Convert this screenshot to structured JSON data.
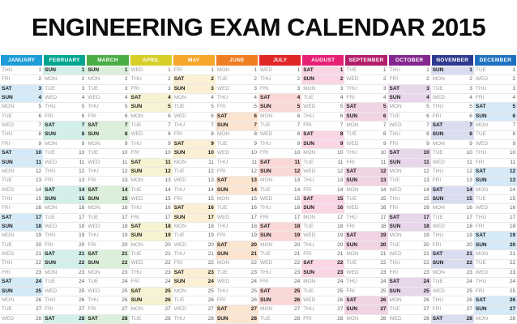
{
  "title": "ENGINEERING EXAM CALENDAR 2015",
  "visible_days": 28,
  "weekend_days": [
    "SAT",
    "SUN"
  ],
  "months": [
    {
      "label": "JANUARY",
      "color": "#1E9CD7",
      "tint": "#D4EBF7",
      "days": [
        "THU",
        "FRI",
        "SAT",
        "SUN",
        "MON",
        "TUE",
        "WED",
        "THU",
        "FRI",
        "SAT",
        "SUN",
        "MON",
        "TUE",
        "WED",
        "THU",
        "FRI",
        "SAT",
        "SUN",
        "MON",
        "TUE",
        "WED",
        "THU",
        "FRI",
        "SAT",
        "SUN",
        "MON",
        "TUE",
        "WED"
      ]
    },
    {
      "label": "FEBRUARY",
      "color": "#00A591",
      "tint": "#D3EFE9",
      "days": [
        "SUN",
        "MON",
        "TUE",
        "WED",
        "THU",
        "FRI",
        "SAT",
        "SUN",
        "MON",
        "TUE",
        "WED",
        "THU",
        "FRI",
        "SAT",
        "SUN",
        "MON",
        "TUE",
        "WED",
        "THU",
        "FRI",
        "SAT",
        "SUN",
        "MON",
        "TUE",
        "WED",
        "THU",
        "FRI",
        "SAT"
      ]
    },
    {
      "label": "MARCH",
      "color": "#4BAE45",
      "tint": "#DCEFDA",
      "days": [
        "SUN",
        "MON",
        "TUE",
        "WED",
        "THU",
        "FRI",
        "SAT",
        "SUN",
        "MON",
        "TUE",
        "WED",
        "THU",
        "FRI",
        "SAT",
        "SUN",
        "MON",
        "TUE",
        "WED",
        "THU",
        "FRI",
        "SAT",
        "SUN",
        "MON",
        "TUE",
        "WED",
        "THU",
        "FRI",
        "SAT"
      ]
    },
    {
      "label": "APRIL",
      "color": "#D7CF28",
      "tint": "#F6F3D2",
      "days": [
        "WED",
        "THU",
        "FRI",
        "SAT",
        "SUN",
        "MON",
        "TUE",
        "WED",
        "THU",
        "FRI",
        "SAT",
        "SUN",
        "MON",
        "TUE",
        "WED",
        "THU",
        "FRI",
        "SAT",
        "SUN",
        "MON",
        "TUE",
        "WED",
        "THU",
        "FRI",
        "SAT",
        "SUN",
        "MON",
        "TUE"
      ]
    },
    {
      "label": "MAY",
      "color": "#F7A72B",
      "tint": "#FCF0D4",
      "days": [
        "FRI",
        "SAT",
        "SUN",
        "MON",
        "TUE",
        "WED",
        "THU",
        "FRI",
        "SAT",
        "SUN",
        "MON",
        "TUE",
        "WED",
        "THU",
        "FRI",
        "SAT",
        "SUN",
        "MON",
        "TUE",
        "WED",
        "THU",
        "FRI",
        "SAT",
        "SUN",
        "MON",
        "TUE",
        "WED",
        "THU"
      ]
    },
    {
      "label": "JUNE",
      "color": "#EF7D22",
      "tint": "#FCE5D0",
      "days": [
        "MON",
        "TUE",
        "WED",
        "THU",
        "FRI",
        "SAT",
        "SUN",
        "MON",
        "TUE",
        "WED",
        "THU",
        "FRI",
        "SAT",
        "SUN",
        "MON",
        "TUE",
        "WED",
        "THU",
        "FRI",
        "SAT",
        "SUN",
        "MON",
        "TUE",
        "WED",
        "THU",
        "FRI",
        "SAT",
        "SUN"
      ]
    },
    {
      "label": "JULY",
      "color": "#DF2728",
      "tint": "#FAD8D7",
      "days": [
        "WED",
        "THU",
        "FRI",
        "SAT",
        "SUN",
        "MON",
        "TUE",
        "WED",
        "THU",
        "FRI",
        "SAT",
        "SUN",
        "MON",
        "TUE",
        "WED",
        "THU",
        "FRI",
        "SAT",
        "SUN",
        "MON",
        "TUE",
        "WED",
        "THU",
        "FRI",
        "SAT",
        "SUN",
        "MON",
        "TUE"
      ]
    },
    {
      "label": "AUGUST",
      "color": "#E72076",
      "tint": "#FAD6E5",
      "days": [
        "SAT",
        "SUN",
        "MON",
        "TUE",
        "WED",
        "THU",
        "FRI",
        "SAT",
        "SUN",
        "MON",
        "TUE",
        "WED",
        "THU",
        "FRI",
        "SAT",
        "SUN",
        "MON",
        "TUE",
        "WED",
        "THU",
        "FRI",
        "SAT",
        "SUN",
        "MON",
        "TUE",
        "WED",
        "THU",
        "FRI"
      ]
    },
    {
      "label": "SEPTEMBER",
      "color": "#B21D69",
      "tint": "#F1D4E3",
      "days": [
        "TUE",
        "WED",
        "THU",
        "FRI",
        "SAT",
        "SUN",
        "MON",
        "TUE",
        "WED",
        "THU",
        "FRI",
        "SAT",
        "SUN",
        "MON",
        "TUE",
        "WED",
        "THU",
        "FRI",
        "SAT",
        "SUN",
        "MON",
        "TUE",
        "WED",
        "THU",
        "FRI",
        "SAT",
        "SUN",
        "MON"
      ]
    },
    {
      "label": "OCTOBER",
      "color": "#85278E",
      "tint": "#E8D7EB",
      "days": [
        "THU",
        "FRI",
        "SAT",
        "SUN",
        "MON",
        "TUE",
        "WED",
        "THU",
        "FRI",
        "SAT",
        "SUN",
        "MON",
        "TUE",
        "WED",
        "THU",
        "FRI",
        "SAT",
        "SUN",
        "MON",
        "TUE",
        "WED",
        "THU",
        "FRI",
        "SAT",
        "SUN",
        "MON",
        "TUE",
        "WED"
      ]
    },
    {
      "label": "NOVEMBER",
      "color": "#2E3A90",
      "tint": "#DADCEF",
      "days": [
        "SUN",
        "MON",
        "TUE",
        "WED",
        "THU",
        "FRI",
        "SAT",
        "SUN",
        "MON",
        "TUE",
        "WED",
        "THU",
        "FRI",
        "SAT",
        "SUN",
        "MON",
        "TUE",
        "WED",
        "THU",
        "FRI",
        "SAT",
        "SUN",
        "MON",
        "TUE",
        "WED",
        "THU",
        "FRI",
        "SAT"
      ]
    },
    {
      "label": "DECEMBER",
      "color": "#1E71BF",
      "tint": "#D5E9F6",
      "days": [
        "TUE",
        "WED",
        "THU",
        "FRI",
        "SAT",
        "SUN",
        "MON",
        "TUE",
        "WED",
        "THU",
        "FRI",
        "SAT",
        "SUN",
        "MON",
        "TUE",
        "WED",
        "THU",
        "FRI",
        "SAT",
        "SUN",
        "MON",
        "TUE",
        "WED",
        "THU",
        "FRI",
        "SAT",
        "SUN",
        "MON"
      ]
    }
  ]
}
